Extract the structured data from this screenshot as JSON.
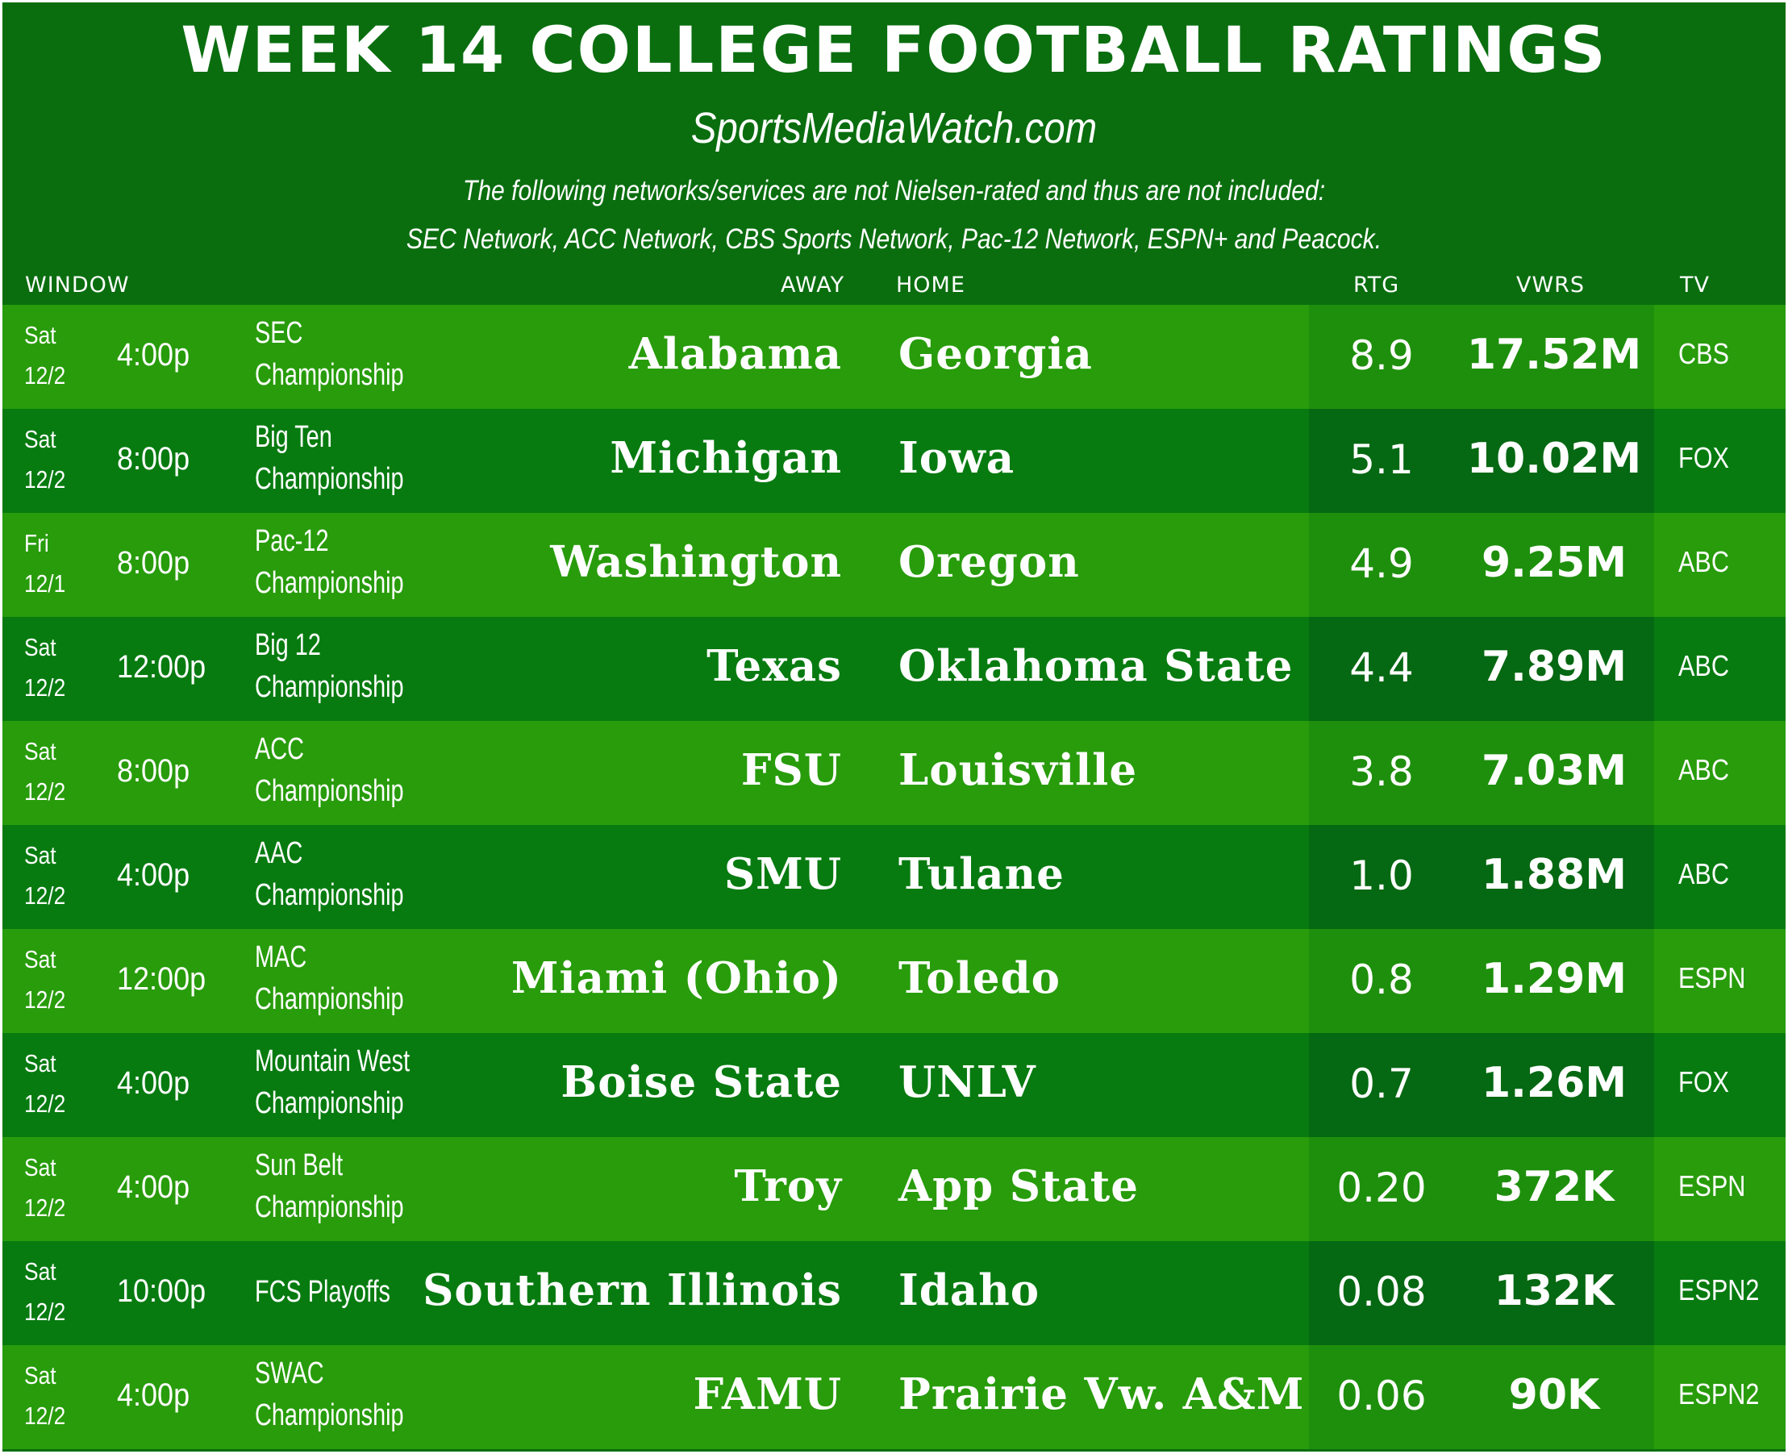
{
  "title": "WEEK 14 COLLEGE FOOTBALL RATINGS",
  "site": "SportsMediaWatch.com",
  "note_line1": "The following networks/services are not Nielsen-rated and thus are not included:",
  "note_line2": "SEC Network, ACC Network, CBS Sports Network, Pac-12 Network, ESPN+ and Peacock.",
  "headers": {
    "window": "WINDOW",
    "away": "AWAY",
    "home": "HOME",
    "rtg": "RTG",
    "vwrs": "VWRS",
    "tv": "TV"
  },
  "colors": {
    "frame": "#0a6e0f",
    "row_light": "#289c0b",
    "row_dark": "#077b10",
    "text": "#ffffff"
  },
  "rows": [
    {
      "day": "Sat",
      "date": "12/2",
      "time": "4:00p",
      "game1": "SEC",
      "game2": "Championship",
      "away": "Alabama",
      "home": "Georgia",
      "rtg": "8.9",
      "vwrs": "17.52M",
      "tv": "CBS"
    },
    {
      "day": "Sat",
      "date": "12/2",
      "time": "8:00p",
      "game1": "Big Ten",
      "game2": "Championship",
      "away": "Michigan",
      "home": "Iowa",
      "rtg": "5.1",
      "vwrs": "10.02M",
      "tv": "FOX"
    },
    {
      "day": "Fri",
      "date": "12/1",
      "time": "8:00p",
      "game1": "Pac-12",
      "game2": "Championship",
      "away": "Washington",
      "home": "Oregon",
      "rtg": "4.9",
      "vwrs": "9.25M",
      "tv": "ABC"
    },
    {
      "day": "Sat",
      "date": "12/2",
      "time": "12:00p",
      "game1": "Big 12",
      "game2": "Championship",
      "away": "Texas",
      "home": "Oklahoma State",
      "rtg": "4.4",
      "vwrs": "7.89M",
      "tv": "ABC"
    },
    {
      "day": "Sat",
      "date": "12/2",
      "time": "8:00p",
      "game1": "ACC",
      "game2": "Championship",
      "away": "FSU",
      "home": "Louisville",
      "rtg": "3.8",
      "vwrs": "7.03M",
      "tv": "ABC"
    },
    {
      "day": "Sat",
      "date": "12/2",
      "time": "4:00p",
      "game1": "AAC",
      "game2": "Championship",
      "away": "SMU",
      "home": "Tulane",
      "rtg": "1.0",
      "vwrs": "1.88M",
      "tv": "ABC"
    },
    {
      "day": "Sat",
      "date": "12/2",
      "time": "12:00p",
      "game1": "MAC",
      "game2": "Championship",
      "away": "Miami (Ohio)",
      "home": "Toledo",
      "rtg": "0.8",
      "vwrs": "1.29M",
      "tv": "ESPN"
    },
    {
      "day": "Sat",
      "date": "12/2",
      "time": "4:00p",
      "game1": "Mountain West",
      "game2": "Championship",
      "away": "Boise State",
      "home": "UNLV",
      "rtg": "0.7",
      "vwrs": "1.26M",
      "tv": "FOX"
    },
    {
      "day": "Sat",
      "date": "12/2",
      "time": "4:00p",
      "game1": "Sun Belt",
      "game2": "Championship",
      "away": "Troy",
      "home": "App State",
      "rtg": "0.20",
      "vwrs": "372K",
      "tv": "ESPN"
    },
    {
      "day": "Sat",
      "date": "12/2",
      "time": "10:00p",
      "game1": "FCS Playoffs",
      "game2": "",
      "away": "Southern Illinois",
      "home": "Idaho",
      "rtg": "0.08",
      "vwrs": "132K",
      "tv": "ESPN2"
    },
    {
      "day": "Sat",
      "date": "12/2",
      "time": "4:00p",
      "game1": "SWAC",
      "game2": "Championship",
      "away": "FAMU",
      "home": "Prairie Vw. A&M",
      "rtg": "0.06",
      "vwrs": "90K",
      "tv": "ESPN2"
    }
  ]
}
